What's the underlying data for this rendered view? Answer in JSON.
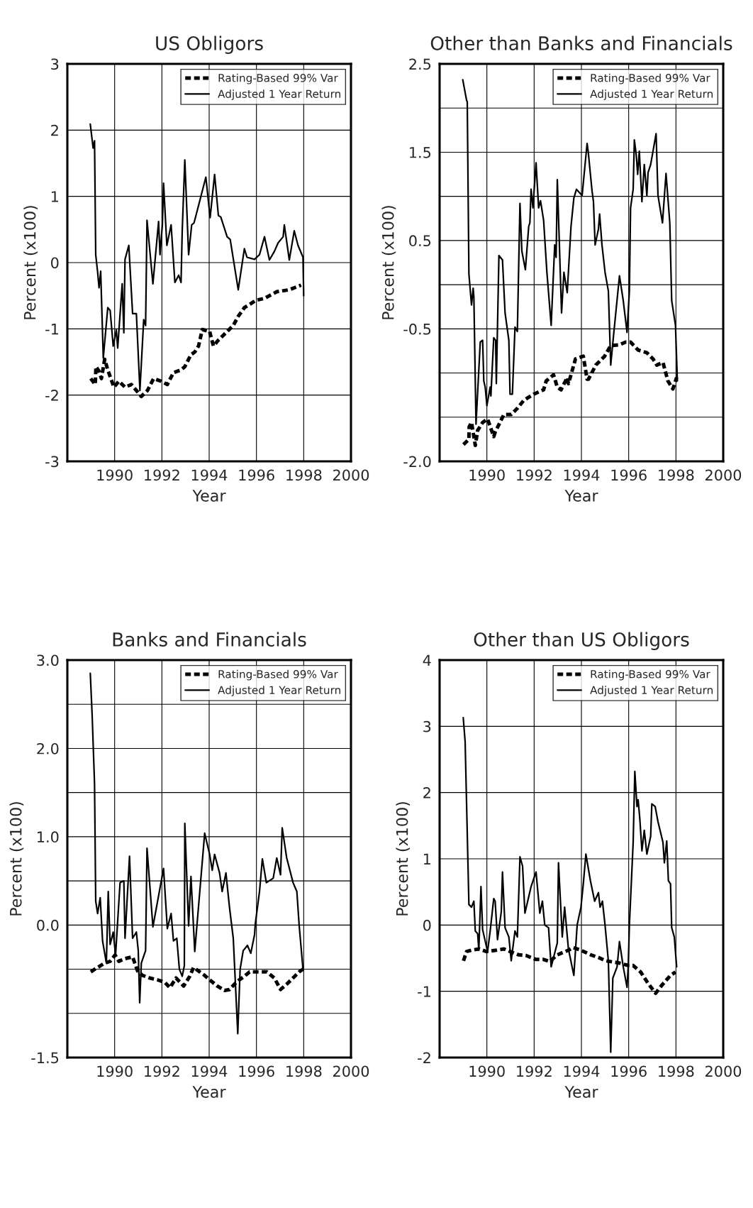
{
  "chart_data": [
    {
      "type": "line",
      "title": "US Obligors",
      "xlabel": "Year",
      "ylabel": "Percent (x100)",
      "xlim": [
        1988,
        2000
      ],
      "xticks": [
        1990,
        1992,
        1994,
        1996,
        1998,
        2000
      ],
      "ylim": [
        -3,
        3
      ],
      "yticks": [
        -3,
        -2,
        -1,
        0,
        1,
        2,
        3
      ],
      "grid": true,
      "legend": "top right",
      "series": [
        {
          "name": "Rating-Based 99% Var",
          "color": "#000000",
          "line_style": "dashed",
          "x": [
            1988.99,
            1989.18,
            1989.21,
            1989.34,
            1989.44,
            1989.58,
            1989.71,
            1989.97,
            1990.18,
            1990.44,
            1990.71,
            1991.13,
            1991.39,
            1991.65,
            1991.97,
            1992.23,
            1992.49,
            1992.81,
            1992.97,
            1993.23,
            1993.39,
            1993.55,
            1993.71,
            1994.02,
            1994.18,
            1994.39,
            1994.76,
            1995.02,
            1995.23,
            1995.49,
            1995.76,
            1995.97,
            1996.34,
            1996.55,
            1996.86,
            1997.39,
            1997.89
          ],
          "values": [
            -1.75,
            -1.84,
            -1.57,
            -1.64,
            -1.75,
            -1.46,
            -1.62,
            -1.88,
            -1.79,
            -1.88,
            -1.84,
            -2.02,
            -1.93,
            -1.75,
            -1.79,
            -1.84,
            -1.66,
            -1.62,
            -1.57,
            -1.39,
            -1.35,
            -1.26,
            -1.01,
            -1.04,
            -1.26,
            -1.17,
            -1.04,
            -0.95,
            -0.81,
            -0.68,
            -0.62,
            -0.57,
            -0.54,
            -0.5,
            -0.44,
            -0.41,
            -0.34
          ]
        },
        {
          "name": "Adjusted 1 Year Return",
          "color": "#000000",
          "line_style": "solid",
          "x": [
            1988.97,
            1989.09,
            1989.15,
            1989.2,
            1989.28,
            1989.34,
            1989.41,
            1989.52,
            1989.71,
            1989.81,
            1989.94,
            1990.07,
            1990.13,
            1990.32,
            1990.39,
            1990.44,
            1990.6,
            1990.76,
            1990.92,
            1991.07,
            1991.23,
            1991.31,
            1991.37,
            1991.62,
            1991.86,
            1991.92,
            1992.02,
            1992.07,
            1992.21,
            1992.39,
            1992.55,
            1992.71,
            1992.81,
            1992.86,
            1992.97,
            1993.13,
            1993.26,
            1993.36,
            1993.6,
            1993.86,
            1994.04,
            1994.23,
            1994.39,
            1994.49,
            1994.76,
            1994.89,
            1995.23,
            1995.49,
            1995.6,
            1995.92,
            1996.13,
            1996.34,
            1996.55,
            1996.76,
            1996.92,
            1997.13,
            1997.18,
            1997.39,
            1997.6,
            1997.76,
            1997.97,
            1998.0
          ],
          "values": [
            2.09,
            1.73,
            1.84,
            0.12,
            -0.14,
            -0.38,
            -0.13,
            -1.44,
            -0.68,
            -0.72,
            -1.26,
            -1.02,
            -1.29,
            -0.32,
            -1.06,
            0.05,
            0.26,
            -0.77,
            -0.77,
            -1.93,
            -0.86,
            -0.95,
            0.64,
            -0.32,
            0.62,
            0.12,
            0.57,
            1.2,
            0.26,
            0.57,
            -0.3,
            -0.19,
            -0.3,
            0.48,
            1.55,
            0.12,
            0.57,
            0.6,
            0.93,
            1.29,
            0.68,
            1.33,
            0.71,
            0.69,
            0.39,
            0.35,
            -0.41,
            0.21,
            0.08,
            0.05,
            0.12,
            0.39,
            0.04,
            0.17,
            0.3,
            0.39,
            0.57,
            0.04,
            0.48,
            0.26,
            0.08,
            -0.5
          ]
        }
      ]
    },
    {
      "type": "line",
      "title": "Other than Banks and Financials",
      "xlabel": "Year",
      "ylabel": "Percent (x100)",
      "xlim": [
        1988,
        2000
      ],
      "xticks": [
        1990,
        1992,
        1994,
        1996,
        1998,
        2000
      ],
      "ylim": [
        -2.0,
        2.5
      ],
      "yticks": [
        {
          "value": -2.0,
          "label": "-2.0"
        },
        {
          "value": -1.5,
          "label": null
        },
        {
          "value": -1.0,
          "label": null
        },
        -0.5,
        {
          "value": 0.0,
          "label": null
        },
        0.5,
        {
          "value": 1.0,
          "label": null
        },
        1.5,
        {
          "value": 2.0,
          "label": null
        },
        2.5
      ],
      "grid": true,
      "legend": "top right",
      "series": [
        {
          "name": "Rating-Based 99% Var",
          "color": "#000000",
          "line_style": "dashed",
          "x": [
            1989.01,
            1989.24,
            1989.25,
            1989.35,
            1989.51,
            1989.61,
            1989.82,
            1990.03,
            1990.29,
            1990.35,
            1990.72,
            1991.03,
            1991.29,
            1991.56,
            1991.98,
            1992.4,
            1992.51,
            1992.82,
            1992.98,
            1993.14,
            1993.4,
            1993.45,
            1993.56,
            1993.75,
            1994.08,
            1994.24,
            1994.3,
            1994.61,
            1994.98,
            1995.24,
            1995.61,
            1995.87,
            1996.08,
            1996.4,
            1996.77,
            1997.03,
            1997.19,
            1997.45,
            1997.66,
            1997.87,
            1998.03
          ],
          "values": [
            -1.81,
            -1.75,
            -1.61,
            -1.56,
            -1.82,
            -1.65,
            -1.56,
            -1.52,
            -1.72,
            -1.67,
            -1.47,
            -1.47,
            -1.4,
            -1.31,
            -1.24,
            -1.19,
            -1.09,
            -1.02,
            -1.16,
            -1.19,
            -1.05,
            -1.12,
            -1.02,
            -0.84,
            -0.81,
            -1.07,
            -1.07,
            -0.91,
            -0.81,
            -0.69,
            -0.68,
            -0.65,
            -0.65,
            -0.74,
            -0.77,
            -0.84,
            -0.91,
            -0.88,
            -1.09,
            -1.18,
            -1.05
          ]
        },
        {
          "name": "Adjusted 1 Year Return",
          "color": "#000000",
          "line_style": "solid",
          "x": [
            1988.98,
            1989.14,
            1989.17,
            1989.24,
            1989.35,
            1989.42,
            1989.45,
            1989.54,
            1989.72,
            1989.82,
            1989.87,
            1989.93,
            1990.0,
            1990.14,
            1990.17,
            1990.29,
            1990.37,
            1990.4,
            1990.51,
            1990.66,
            1990.77,
            1990.93,
            1990.98,
            1991.08,
            1991.19,
            1991.29,
            1991.4,
            1991.48,
            1991.63,
            1991.77,
            1991.82,
            1991.87,
            1991.95,
            1992.08,
            1992.19,
            1992.27,
            1992.4,
            1992.54,
            1992.72,
            1992.87,
            1992.93,
            1992.98,
            1993.16,
            1993.26,
            1993.4,
            1993.56,
            1993.68,
            1993.79,
            1994.03,
            1994.24,
            1994.29,
            1994.45,
            1994.51,
            1994.58,
            1994.72,
            1994.77,
            1994.87,
            1995.0,
            1995.14,
            1995.24,
            1995.35,
            1995.61,
            1995.77,
            1995.93,
            1996.03,
            1996.08,
            1996.19,
            1996.24,
            1996.32,
            1996.38,
            1996.45,
            1996.56,
            1996.66,
            1996.77,
            1996.82,
            1996.93,
            1997.16,
            1997.24,
            1997.43,
            1997.58,
            1997.74,
            1997.82,
            1997.98,
            1998.06
          ],
          "values": [
            2.32,
            2.09,
            2.07,
            0.12,
            -0.23,
            -0.04,
            -0.14,
            -1.58,
            -0.65,
            -0.63,
            -1.09,
            -1.16,
            -1.37,
            -1.16,
            -1.26,
            -0.6,
            -0.63,
            -1.12,
            0.33,
            0.28,
            -0.32,
            -0.63,
            -1.24,
            -1.24,
            -0.48,
            -0.53,
            0.92,
            0.38,
            0.17,
            0.66,
            0.7,
            1.08,
            0.87,
            1.38,
            0.87,
            0.95,
            0.73,
            0.14,
            -0.46,
            0.45,
            0.31,
            1.19,
            -0.32,
            0.14,
            -0.09,
            0.66,
            0.98,
            1.08,
            1.01,
            1.6,
            1.5,
            1.06,
            0.94,
            0.45,
            0.63,
            0.8,
            0.45,
            0.14,
            -0.07,
            -0.91,
            -0.6,
            0.1,
            -0.18,
            -0.54,
            -0.07,
            0.87,
            1.08,
            1.64,
            1.47,
            1.25,
            1.51,
            0.94,
            1.36,
            1.01,
            1.27,
            1.36,
            1.71,
            1.01,
            0.7,
            1.26,
            0.7,
            -0.18,
            -0.46,
            -1.09
          ]
        }
      ]
    },
    {
      "type": "line",
      "title": "Banks and Financials",
      "xlabel": "Year",
      "ylabel": "Percent (x100)",
      "xlim": [
        1988,
        2000
      ],
      "xticks": [
        1990,
        1992,
        1994,
        1996,
        1998,
        2000
      ],
      "ylim": [
        -1.5,
        3.0
      ],
      "yticks": [
        -1.5,
        {
          "value": -1.0,
          "label": null
        },
        {
          "value": -0.5,
          "label": null
        },
        {
          "value": 0.0,
          "label": "0.0"
        },
        {
          "value": 0.5,
          "label": null
        },
        {
          "value": 1.0,
          "label": "1.0"
        },
        {
          "value": 1.5,
          "label": null
        },
        {
          "value": 2.0,
          "label": "2.0"
        },
        {
          "value": 2.5,
          "label": null
        },
        {
          "value": 3.0,
          "label": "3.0"
        }
      ],
      "grid": true,
      "legend": "top right",
      "series": [
        {
          "name": "Rating-Based 99% Var",
          "color": "#000000",
          "line_style": "dashed",
          "x": [
            1988.99,
            1989.28,
            1989.58,
            1989.81,
            1990.02,
            1990.18,
            1990.44,
            1990.76,
            1990.97,
            1991.18,
            1991.49,
            1991.81,
            1992.13,
            1992.34,
            1992.6,
            1992.92,
            1993.18,
            1993.34,
            1993.6,
            1993.81,
            1994.02,
            1994.34,
            1994.65,
            1994.86,
            1995.07,
            1995.28,
            1995.49,
            1995.71,
            1995.92,
            1996.13,
            1996.44,
            1996.76,
            1997.02,
            1997.28,
            1997.81,
            1997.97
          ],
          "values": [
            -0.53,
            -0.48,
            -0.43,
            -0.41,
            -0.34,
            -0.41,
            -0.38,
            -0.36,
            -0.52,
            -0.57,
            -0.6,
            -0.62,
            -0.65,
            -0.71,
            -0.6,
            -0.69,
            -0.58,
            -0.48,
            -0.53,
            -0.57,
            -0.62,
            -0.69,
            -0.74,
            -0.73,
            -0.67,
            -0.62,
            -0.58,
            -0.53,
            -0.53,
            -0.53,
            -0.53,
            -0.6,
            -0.73,
            -0.67,
            -0.53,
            -0.5
          ]
        },
        {
          "name": "Adjusted 1 Year Return",
          "color": "#000000",
          "line_style": "solid",
          "x": [
            1988.97,
            1989.05,
            1989.15,
            1989.2,
            1989.28,
            1989.39,
            1989.49,
            1989.65,
            1989.73,
            1989.81,
            1989.94,
            1990.04,
            1990.23,
            1990.39,
            1990.44,
            1990.63,
            1990.76,
            1990.92,
            1991.0,
            1991.06,
            1991.13,
            1991.31,
            1991.37,
            1991.62,
            1992.07,
            1992.23,
            1992.39,
            1992.49,
            1992.63,
            1992.74,
            1992.86,
            1992.95,
            1992.97,
            1993.13,
            1993.23,
            1993.39,
            1993.81,
            1994.02,
            1994.13,
            1994.23,
            1994.44,
            1994.55,
            1994.71,
            1994.86,
            1995.02,
            1995.21,
            1995.31,
            1995.44,
            1995.62,
            1995.76,
            1995.92,
            1995.95,
            1996.13,
            1996.25,
            1996.42,
            1996.71,
            1996.86,
            1997.02,
            1997.09,
            1997.28,
            1997.55,
            1997.71,
            1997.81,
            1997.97
          ],
          "values": [
            2.85,
            2.37,
            1.6,
            0.27,
            0.13,
            0.31,
            -0.18,
            -0.43,
            0.38,
            -0.22,
            -0.08,
            -0.34,
            0.48,
            0.5,
            -0.15,
            0.78,
            -0.15,
            -0.08,
            -0.29,
            -0.88,
            -0.43,
            -0.29,
            0.87,
            -0.02,
            0.64,
            -0.04,
            0.13,
            -0.18,
            -0.15,
            -0.5,
            -0.58,
            -0.46,
            1.15,
            -0.01,
            0.55,
            -0.3,
            1.04,
            0.8,
            0.62,
            0.8,
            0.59,
            0.38,
            0.59,
            0.2,
            -0.15,
            -1.23,
            -0.5,
            -0.29,
            -0.23,
            -0.32,
            -0.11,
            0.01,
            0.38,
            0.75,
            0.48,
            0.53,
            0.76,
            0.57,
            1.1,
            0.76,
            0.48,
            0.38,
            -0.01,
            -0.5
          ]
        }
      ]
    },
    {
      "type": "line",
      "title": "Other than US Obligors",
      "xlabel": "Year",
      "ylabel": "Percent (x100)",
      "xlim": [
        1988,
        2000
      ],
      "xticks": [
        1990,
        1992,
        1994,
        1996,
        1998,
        2000
      ],
      "ylim": [
        -2,
        4
      ],
      "yticks": [
        -2,
        -1,
        0,
        1,
        2,
        3,
        4
      ],
      "grid": true,
      "legend": "top right",
      "series": [
        {
          "name": "Rating-Based 99% Var",
          "color": "#000000",
          "line_style": "dashed",
          "x": [
            1989.01,
            1989.14,
            1989.35,
            1989.66,
            1989.98,
            1990.4,
            1990.72,
            1990.98,
            1991.35,
            1991.66,
            1992.08,
            1992.4,
            1992.66,
            1992.98,
            1993.45,
            1993.66,
            1993.98,
            1994.4,
            1994.72,
            1995.03,
            1995.56,
            1995.98,
            1996.19,
            1996.51,
            1996.82,
            1997.14,
            1997.4,
            1997.77,
            1997.98
          ],
          "values": [
            -0.54,
            -0.4,
            -0.38,
            -0.36,
            -0.4,
            -0.38,
            -0.36,
            -0.4,
            -0.45,
            -0.46,
            -0.52,
            -0.52,
            -0.55,
            -0.45,
            -0.38,
            -0.34,
            -0.38,
            -0.45,
            -0.49,
            -0.54,
            -0.57,
            -0.61,
            -0.61,
            -0.71,
            -0.88,
            -1.03,
            -0.91,
            -0.76,
            -0.71
          ]
        },
        {
          "name": "Adjusted 1 Year Return",
          "color": "#000000",
          "line_style": "solid",
          "x": [
            1989.0,
            1989.08,
            1989.24,
            1989.35,
            1989.45,
            1989.51,
            1989.61,
            1989.66,
            1989.75,
            1989.82,
            1990.03,
            1990.14,
            1990.29,
            1990.35,
            1990.45,
            1990.61,
            1990.66,
            1990.77,
            1990.93,
            1991.03,
            1991.19,
            1991.29,
            1991.4,
            1991.51,
            1991.61,
            1991.87,
            1992.08,
            1992.24,
            1992.35,
            1992.45,
            1992.61,
            1992.72,
            1992.98,
            1993.03,
            1993.19,
            1993.29,
            1993.45,
            1993.68,
            1993.82,
            1993.98,
            1994.08,
            1994.19,
            1994.38,
            1994.56,
            1994.72,
            1994.79,
            1994.89,
            1995.0,
            1995.14,
            1995.24,
            1995.33,
            1995.51,
            1995.61,
            1995.77,
            1995.93,
            1995.98,
            1996.03,
            1996.19,
            1996.26,
            1996.35,
            1996.4,
            1996.47,
            1996.56,
            1996.66,
            1996.77,
            1996.93,
            1996.98,
            1997.12,
            1997.24,
            1997.45,
            1997.51,
            1997.61,
            1997.68,
            1997.77,
            1997.82,
            1997.93,
            1998.03
          ],
          "values": [
            3.13,
            2.77,
            0.31,
            0.27,
            0.36,
            -0.09,
            -0.13,
            -0.38,
            0.58,
            -0.07,
            -0.4,
            -0.09,
            0.4,
            0.36,
            -0.22,
            0.2,
            0.8,
            -0.04,
            -0.18,
            -0.54,
            -0.09,
            -0.18,
            1.03,
            0.89,
            0.18,
            0.58,
            0.8,
            0.18,
            0.36,
            0.0,
            -0.04,
            -0.63,
            -0.27,
            0.94,
            -0.18,
            0.27,
            -0.36,
            -0.76,
            0.0,
            0.27,
            0.62,
            1.07,
            0.67,
            0.36,
            0.49,
            0.27,
            0.36,
            0.0,
            -0.54,
            -1.92,
            -0.8,
            -0.63,
            -0.25,
            -0.63,
            -0.94,
            -0.63,
            0.0,
            1.25,
            2.32,
            1.79,
            1.89,
            1.61,
            1.12,
            1.43,
            1.07,
            1.34,
            1.83,
            1.79,
            1.56,
            1.25,
            0.94,
            1.27,
            0.67,
            0.62,
            -0.04,
            -0.18,
            -0.63
          ]
        }
      ]
    }
  ]
}
